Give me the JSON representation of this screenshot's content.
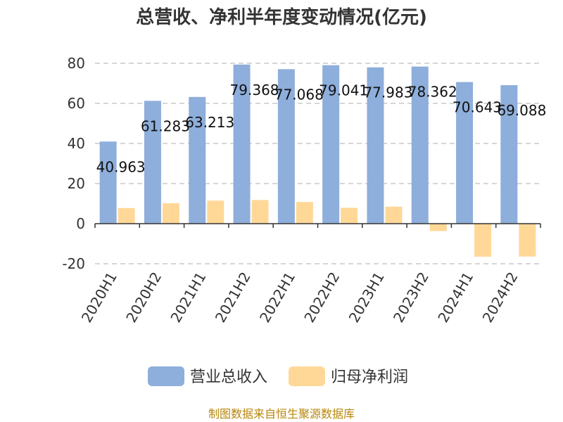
{
  "chart_data": {
    "type": "bar",
    "title": "总营收、净利半年度变动情况(亿元)",
    "categories": [
      "2020H1",
      "2020H2",
      "2021H1",
      "2021H2",
      "2022H1",
      "2022H2",
      "2023H1",
      "2023H2",
      "2024H1",
      "2024H2"
    ],
    "series": [
      {
        "name": "营业总收入",
        "color": "#8eaedb",
        "values": [
          40.963,
          61.283,
          63.213,
          79.368,
          77.068,
          79.041,
          77.983,
          78.362,
          70.643,
          69.088
        ]
      },
      {
        "name": "归母净利润",
        "color": "#ffd898",
        "values": [
          7.8,
          10.2,
          11.5,
          11.8,
          10.8,
          7.9,
          8.5,
          -3.7,
          -16.5,
          -16.4
        ]
      }
    ],
    "data_labels": [
      "40.963",
      "61.283",
      "63.213",
      "79.368",
      "77.068",
      "79.041",
      "77.983",
      "78.362",
      "70.643",
      "69.088"
    ],
    "yticks": [
      -20,
      0,
      20,
      40,
      60,
      80
    ],
    "ylim": [
      -20,
      80
    ],
    "grid": true,
    "legend_position": "bottom"
  },
  "source_note": "制图数据来自恒生聚源数据库"
}
